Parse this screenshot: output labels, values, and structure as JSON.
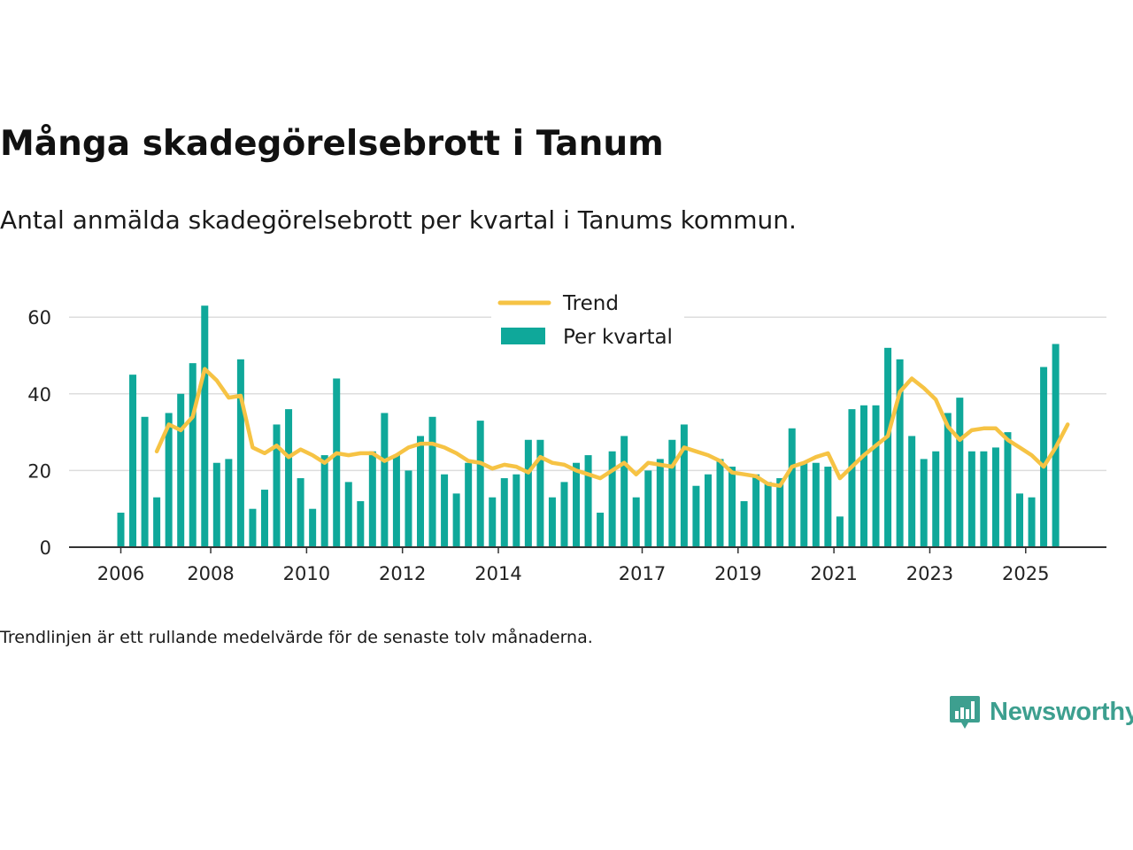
{
  "header": {
    "title": "Många skadegörelsebrott i Tanum",
    "subtitle": "Antal anmälda skadegörelsebrott per kvartal i Tanums kommun."
  },
  "footer": {
    "note": "Trendlinjen är ett rullande medelvärde för de senaste tolv månaderna.",
    "brand": "Newsworthy"
  },
  "colors": {
    "bar": "#0fa89a",
    "trend": "#f6c344",
    "grid": "#dddddd",
    "axis": "#333333",
    "brand": "#3d9f8f"
  },
  "chart_data": {
    "type": "bar",
    "title": "Många skadegörelsebrott i Tanum",
    "ylim": [
      0,
      65
    ],
    "yticks": [
      0,
      20,
      40,
      60
    ],
    "xticks": [
      {
        "label": "2006",
        "index": 0
      },
      {
        "label": "2008",
        "index": 7.5
      },
      {
        "label": "2010",
        "index": 15.5
      },
      {
        "label": "2012",
        "index": 23.5
      },
      {
        "label": "2014",
        "index": 31.5
      },
      {
        "label": "2017",
        "index": 43.5
      },
      {
        "label": "2019",
        "index": 51.5
      },
      {
        "label": "2021",
        "index": 59.5
      },
      {
        "label": "2023",
        "index": 67.5
      },
      {
        "label": "2025",
        "index": 75.5
      }
    ],
    "legend": {
      "position": "top-center",
      "trend_label": "Trend",
      "bars_label": "Per kvartal"
    },
    "series": [
      {
        "name": "Per kvartal",
        "type": "bar",
        "values": [
          9,
          45,
          34,
          13,
          35,
          40,
          48,
          63,
          22,
          23,
          49,
          10,
          15,
          32,
          36,
          18,
          10,
          24,
          44,
          17,
          12,
          25,
          35,
          24,
          20,
          29,
          34,
          19,
          14,
          22,
          33,
          13,
          18,
          19,
          28,
          28,
          13,
          17,
          22,
          24,
          9,
          25,
          29,
          13,
          20,
          23,
          28,
          32,
          16,
          19,
          23,
          21,
          12,
          19,
          17,
          18,
          31,
          22,
          22,
          21,
          8,
          36,
          37,
          37,
          52,
          49,
          29,
          23,
          25,
          35,
          39,
          25,
          25,
          26,
          30,
          14,
          13,
          47,
          53
        ]
      },
      {
        "name": "Trend",
        "type": "line",
        "start_index": 3,
        "values": [
          25,
          32,
          30.5,
          34,
          46.5,
          43.5,
          39,
          39.5,
          26,
          24.5,
          26.5,
          23.5,
          25.5,
          24,
          22,
          24.5,
          24,
          24.5,
          24.5,
          22.5,
          24,
          26,
          27,
          27,
          26,
          24.5,
          22.5,
          22,
          20.5,
          21.5,
          21,
          19.5,
          23.5,
          22,
          21.5,
          20,
          19,
          18,
          20,
          22,
          19,
          22,
          21.5,
          21,
          26,
          25,
          24,
          22.5,
          19.5,
          19,
          18.5,
          16.5,
          16,
          21,
          22,
          23.5,
          24.5,
          18,
          21,
          24,
          26.5,
          29,
          40.5,
          44,
          41.5,
          38.5,
          31.5,
          28,
          30.5,
          31,
          31,
          28,
          26,
          24,
          21,
          26,
          32
        ]
      }
    ]
  }
}
